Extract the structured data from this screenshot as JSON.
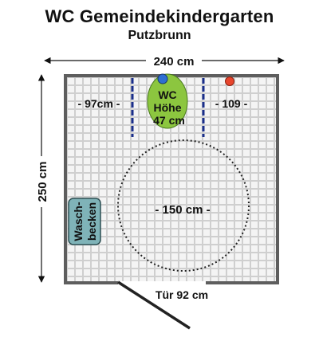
{
  "header": {
    "title": "WC Gemeindekindergarten",
    "subtitle": "Putzbrunn"
  },
  "dimensions": {
    "width_label": "240 cm",
    "height_label": "250 cm",
    "left_clearance_label": "- 97cm -",
    "right_clearance_label": "- 109 -",
    "turning_circle_label": "- 150 cm -",
    "door_label": "Tür 92 cm"
  },
  "fixtures": {
    "wc_line1": "WC",
    "wc_line2": "Höhe",
    "wc_line3": "47 cm",
    "sink_line1": "Wasch-",
    "sink_line2": "becken"
  },
  "colors": {
    "floor": "#c8c8c8",
    "wall": "#666666",
    "wc_fill": "#8cc63f",
    "sink_fill": "#7fb3b8",
    "grab_bar": "#1a2e8a",
    "button_blue": "#2e6fd1",
    "button_red": "#e8462e"
  }
}
